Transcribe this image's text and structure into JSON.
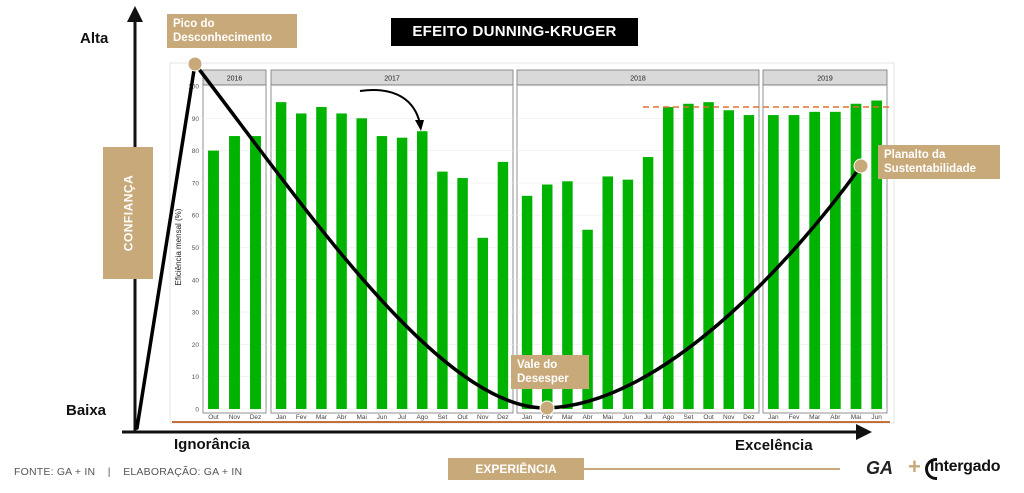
{
  "header": {
    "title": "EFEITO DUNNING-KRUGER"
  },
  "axes": {
    "confidence_label": "CONFIANÇA",
    "experience_label": "EXPERIÊNCIA",
    "y_high": "Alta",
    "y_low": "Baixa",
    "x_low": "Ignorância",
    "x_high": "Excelência"
  },
  "annotations": {
    "peak": "Pico do Desconhecimento",
    "valley": "Vale do Desesper",
    "plateau": "Planalto da Sustentabilidade"
  },
  "footer": {
    "source": "FONTE: GA + IN",
    "separator": "|",
    "elaboration": "ELABORAÇÃO: GA + IN"
  },
  "logos": {
    "ga": "GA",
    "plus": "+",
    "intergado": "Intergado"
  },
  "colors": {
    "bar": "#00b300",
    "accent": "#c8a97a",
    "curve": "#000000",
    "ref_line": "#e07030",
    "baseline": "#b34700"
  },
  "chart_data": {
    "type": "bar",
    "ylabel": "Eficiência mensal (%)",
    "ylim": [
      0,
      100
    ],
    "yticks": [
      0,
      10,
      20,
      30,
      40,
      50,
      60,
      70,
      80,
      90,
      100
    ],
    "grid": true,
    "facets": [
      {
        "label": "2016",
        "categories": [
          "Out",
          "Nov",
          "Dez"
        ],
        "values": [
          80,
          84.5,
          84.5
        ]
      },
      {
        "label": "2017",
        "categories": [
          "Jan",
          "Fev",
          "Mar",
          "Abr",
          "Mai",
          "Jun",
          "Jul",
          "Ago",
          "Set",
          "Out",
          "Nov",
          "Dez"
        ],
        "values": [
          95,
          91.5,
          93.5,
          91.5,
          90,
          84.5,
          84,
          86,
          73.5,
          71.5,
          53,
          76.5
        ]
      },
      {
        "label": "2018",
        "categories": [
          "Jan",
          "Fev",
          "Mar",
          "Abr",
          "Mai",
          "Jun",
          "Jul",
          "Ago",
          "Set",
          "Out",
          "Nov",
          "Dez"
        ],
        "values": [
          66,
          69.5,
          70.5,
          55.5,
          72,
          71,
          78,
          93.5,
          94.5,
          95,
          92.5,
          91
        ]
      },
      {
        "label": "2019",
        "categories": [
          "Jan",
          "Fev",
          "Mar",
          "Abr",
          "Mai",
          "Jun"
        ],
        "values": [
          91,
          91,
          92,
          92,
          94.5,
          95.5
        ]
      }
    ],
    "reference_line": 93.5
  }
}
